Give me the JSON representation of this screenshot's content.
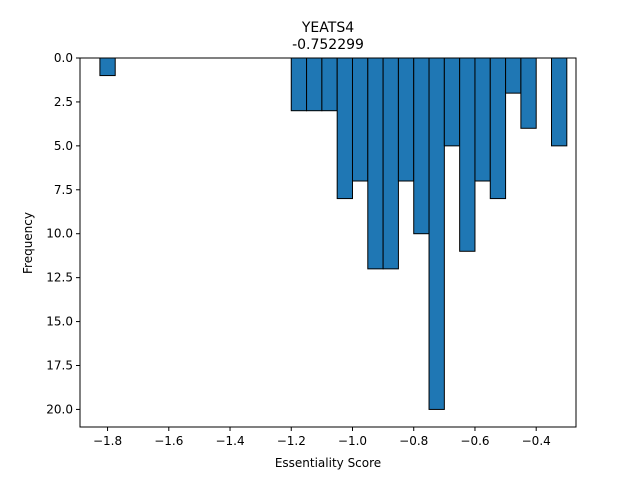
{
  "chart_data": {
    "type": "bar",
    "title": "YEATS4",
    "subtitle": "-0.752299",
    "xlabel": "Essentiality Score",
    "ylabel": "Frequency",
    "xlim": [
      -1.89,
      -0.27
    ],
    "ylim": [
      21.0,
      0.0
    ],
    "y_inverted": true,
    "xticks": [
      -1.8,
      -1.6,
      -1.4,
      -1.2,
      -1.0,
      -0.8,
      -0.6,
      -0.4
    ],
    "xtick_labels": [
      "−1.8",
      "−1.6",
      "−1.4",
      "−1.2",
      "−1.0",
      "−0.8",
      "−0.6",
      "−0.4"
    ],
    "yticks": [
      0.0,
      2.5,
      5.0,
      7.5,
      10.0,
      12.5,
      15.0,
      17.5,
      20.0
    ],
    "ytick_labels": [
      "0.0",
      "2.5",
      "5.0",
      "7.5",
      "10.0",
      "12.5",
      "15.0",
      "17.5",
      "20.0"
    ],
    "bin_width": 0.05,
    "bars": [
      {
        "x0": -1.825,
        "value": 1
      },
      {
        "x0": -1.2,
        "value": 3
      },
      {
        "x0": -1.15,
        "value": 3
      },
      {
        "x0": -1.1,
        "value": 3
      },
      {
        "x0": -1.05,
        "value": 8
      },
      {
        "x0": -1.0,
        "value": 7
      },
      {
        "x0": -0.95,
        "value": 12
      },
      {
        "x0": -0.9,
        "value": 12
      },
      {
        "x0": -0.85,
        "value": 7
      },
      {
        "x0": -0.8,
        "value": 10
      },
      {
        "x0": -0.75,
        "value": 20
      },
      {
        "x0": -0.7,
        "value": 5
      },
      {
        "x0": -0.65,
        "value": 11
      },
      {
        "x0": -0.6,
        "value": 7
      },
      {
        "x0": -0.55,
        "value": 8
      },
      {
        "x0": -0.5,
        "value": 2
      },
      {
        "x0": -0.45,
        "value": 4
      },
      {
        "x0": -0.35,
        "value": 5
      }
    ],
    "bar_color": "#1f77b4",
    "edge_color": "#000000",
    "grid": false,
    "legend": "none"
  }
}
